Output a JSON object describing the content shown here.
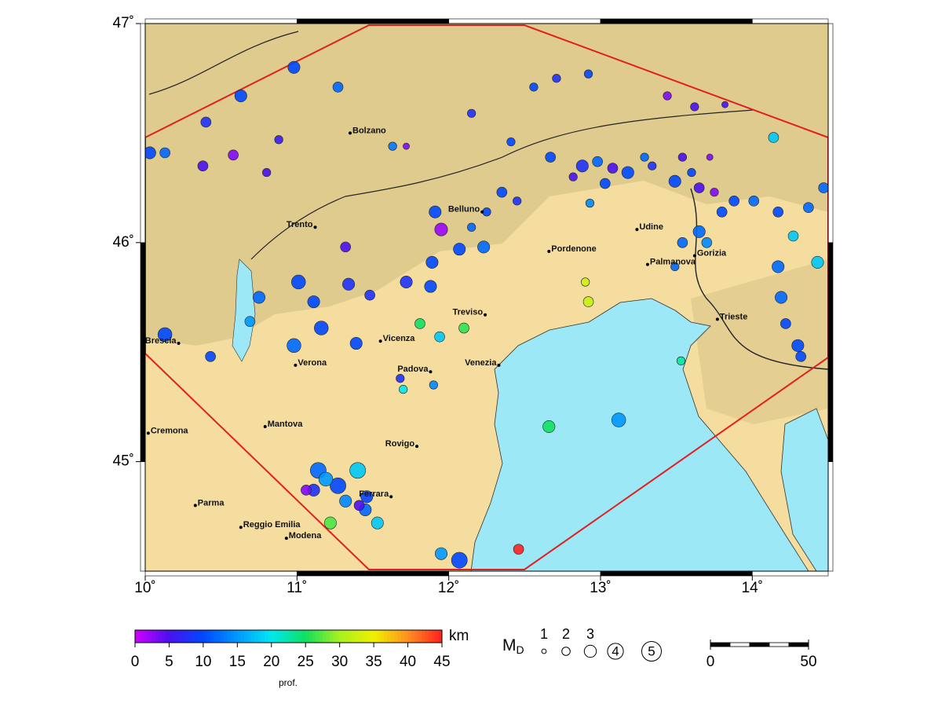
{
  "map": {
    "xlim": [
      10,
      14.5
    ],
    "ylim": [
      44.5,
      47
    ],
    "xticks": [
      {
        "value": 10,
        "label": "10˚"
      },
      {
        "value": 11,
        "label": "11˚"
      },
      {
        "value": 12,
        "label": "12˚"
      },
      {
        "value": 13,
        "label": "13˚"
      },
      {
        "value": 14,
        "label": "14˚"
      }
    ],
    "yticks": [
      {
        "value": 45,
        "label": "45˚"
      },
      {
        "value": 46,
        "label": "46˚"
      },
      {
        "value": 47,
        "label": "47˚"
      }
    ],
    "cities": [
      {
        "name": "Bolzano",
        "lon": 11.35,
        "lat": 46.5
      },
      {
        "name": "Trento",
        "lon": 11.12,
        "lat": 46.07
      },
      {
        "name": "Belluno",
        "lon": 12.22,
        "lat": 46.14
      },
      {
        "name": "Udine",
        "lon": 13.24,
        "lat": 46.06
      },
      {
        "name": "Pordenone",
        "lon": 12.66,
        "lat": 45.96
      },
      {
        "name": "Gorizia",
        "lon": 13.62,
        "lat": 45.94
      },
      {
        "name": "Palmanova",
        "lon": 13.31,
        "lat": 45.9
      },
      {
        "name": "Treviso",
        "lon": 12.24,
        "lat": 45.67
      },
      {
        "name": "Vicenza",
        "lon": 11.55,
        "lat": 45.55
      },
      {
        "name": "Padova",
        "lon": 11.88,
        "lat": 45.41
      },
      {
        "name": "Venezia",
        "lon": 12.33,
        "lat": 45.44
      },
      {
        "name": "Verona",
        "lon": 10.99,
        "lat": 45.44
      },
      {
        "name": "Brescia",
        "lon": 10.22,
        "lat": 45.54
      },
      {
        "name": "Trieste",
        "lon": 13.77,
        "lat": 45.65
      },
      {
        "name": "Mantova",
        "lon": 10.79,
        "lat": 45.16
      },
      {
        "name": "Rovigo",
        "lon": 11.79,
        "lat": 45.07
      },
      {
        "name": "Cremona",
        "lon": 10.02,
        "lat": 45.13
      },
      {
        "name": "Parma",
        "lon": 10.33,
        "lat": 44.8
      },
      {
        "name": "Reggio Emilia",
        "lon": 10.63,
        "lat": 44.7
      },
      {
        "name": "Modena",
        "lon": 10.93,
        "lat": 44.65
      },
      {
        "name": "Ferrara",
        "lon": 11.62,
        "lat": 44.84
      }
    ],
    "events": {
      "lon": [
        10.98,
        10.63,
        11.27,
        10.4,
        10.03,
        10.13,
        10.38,
        10.58,
        10.8,
        10.88,
        11.63,
        11.72,
        11.91,
        11.95,
        12.07,
        12.23,
        11.89,
        11.72,
        11.88,
        11.48,
        11.34,
        11.11,
        11.01,
        10.75,
        10.69,
        11.16,
        10.98,
        11.39,
        10.43,
        10.13,
        11.81,
        12.1,
        11.94,
        11.68,
        11.7,
        11.9,
        11.32,
        12.15,
        12.41,
        12.67,
        12.88,
        12.98,
        13.08,
        13.18,
        13.34,
        13.49,
        13.65,
        13.75,
        13.88,
        14.01,
        14.17,
        14.37,
        14.47,
        14.27,
        14.17,
        14.43,
        14.19,
        14.22,
        14.3,
        14.32,
        13.65,
        13.7,
        13.54,
        13.49,
        13.8,
        14.14,
        12.92,
        12.71,
        12.56,
        13.62,
        13.44,
        13.82,
        12.92,
        12.9,
        12.93,
        13.53,
        12.66,
        13.12,
        12.46,
        12.07,
        11.95,
        11.14,
        11.4,
        11.27,
        11.11,
        11.06,
        11.22,
        11.53,
        11.45,
        11.46,
        11.41,
        11.32,
        11.19,
        12.35,
        12.45,
        12.25,
        12.15,
        12.82,
        13.03,
        13.29,
        13.54,
        13.6,
        13.72
      ],
      "lat": [
        46.8,
        46.67,
        46.71,
        46.55,
        46.41,
        46.41,
        46.35,
        46.4,
        46.32,
        46.47,
        46.44,
        46.44,
        46.14,
        46.06,
        45.97,
        45.98,
        45.91,
        45.82,
        45.8,
        45.76,
        45.81,
        45.73,
        45.82,
        45.75,
        45.64,
        45.61,
        45.53,
        45.54,
        45.48,
        45.58,
        45.63,
        45.61,
        45.57,
        45.38,
        45.33,
        45.35,
        45.98,
        46.59,
        46.46,
        46.39,
        46.35,
        46.37,
        46.34,
        46.32,
        46.35,
        46.28,
        46.25,
        46.23,
        46.19,
        46.19,
        46.14,
        46.16,
        46.25,
        46.03,
        45.89,
        45.91,
        45.75,
        45.63,
        45.53,
        45.48,
        46.05,
        46.0,
        46.0,
        45.89,
        46.14,
        46.48,
        46.77,
        46.75,
        46.71,
        46.62,
        46.67,
        46.63,
        45.73,
        45.82,
        46.18,
        45.46,
        45.16,
        45.19,
        44.6,
        44.55,
        44.58,
        44.96,
        44.96,
        44.89,
        44.87,
        44.87,
        44.72,
        44.72,
        44.78,
        44.84,
        44.8,
        44.82,
        44.92,
        46.23,
        46.19,
        46.14,
        46.07,
        46.3,
        46.27,
        46.39,
        46.39,
        46.32,
        46.39
      ],
      "depth": [
        10,
        10,
        12,
        8,
        10,
        12,
        5,
        3,
        5,
        6,
        13,
        3,
        10,
        2,
        10,
        12,
        10,
        8,
        10,
        8,
        8,
        10,
        10,
        12,
        15,
        10,
        12,
        10,
        10,
        10,
        25,
        26,
        18,
        8,
        20,
        14,
        5,
        8,
        10,
        10,
        8,
        12,
        5,
        10,
        8,
        10,
        5,
        3,
        10,
        12,
        10,
        12,
        12,
        18,
        12,
        18,
        12,
        10,
        10,
        10,
        12,
        14,
        12,
        12,
        10,
        18,
        10,
        8,
        10,
        5,
        3,
        5,
        32,
        33,
        14,
        23,
        25,
        15,
        45,
        10,
        15,
        12,
        18,
        10,
        8,
        3,
        27,
        18,
        12,
        10,
        5,
        14,
        15,
        10,
        8,
        10,
        12,
        5,
        10,
        12,
        5,
        10,
        3
      ],
      "magnitude": [
        3,
        3,
        2.5,
        2.5,
        3,
        2.5,
        2.5,
        2.5,
        2,
        2,
        2,
        1.5,
        3,
        3.2,
        3,
        3,
        3,
        3,
        3,
        2.5,
        3,
        3,
        3.5,
        3,
        2.5,
        3.5,
        3.5,
        3,
        2.5,
        3.5,
        2.5,
        2.5,
        2.5,
        2,
        2,
        2,
        2.5,
        2,
        2,
        2.5,
        3,
        2.5,
        2.5,
        3,
        2,
        3,
        2.5,
        2,
        2.5,
        2.5,
        2.5,
        2.5,
        2.5,
        2.5,
        3,
        3,
        3,
        2.5,
        3,
        2.5,
        3,
        2.5,
        2.5,
        2,
        2.5,
        2.5,
        2,
        2,
        2,
        2,
        2,
        1.5,
        2.5,
        2,
        2,
        2,
        3,
        3.5,
        2.5,
        4,
        3,
        4,
        4,
        4,
        3,
        2.5,
        3,
        3,
        3,
        3,
        2.5,
        3,
        3.5,
        2.5,
        2,
        2,
        2,
        2,
        2.5,
        2,
        2,
        2,
        1.5
      ]
    }
  },
  "depth_legend": {
    "label": "km",
    "title": "prof.",
    "ticks": [
      0,
      5,
      10,
      15,
      20,
      25,
      30,
      35,
      40,
      45
    ],
    "colors": [
      "#d000ff",
      "#4a10f0",
      "#0048ff",
      "#0098ff",
      "#00e8f0",
      "#10e060",
      "#a8f020",
      "#f0f000",
      "#ff9020",
      "#ff2020"
    ]
  },
  "magnitude_legend": {
    "title": "M",
    "subscript": "D",
    "sizes": [
      1,
      2,
      3,
      4,
      5
    ]
  },
  "scale_bar": {
    "ticks": [
      0,
      50
    ]
  }
}
